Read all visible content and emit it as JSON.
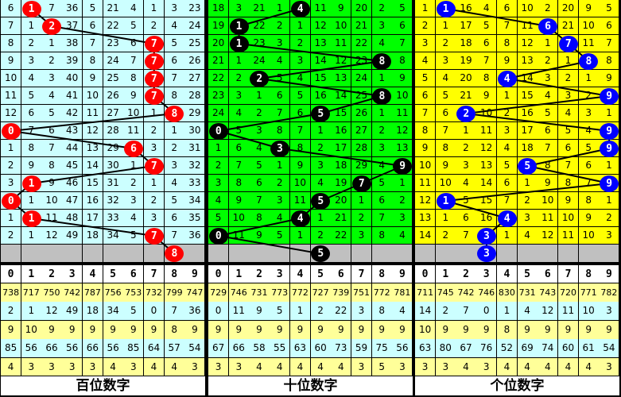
{
  "panels": [
    {
      "title": "百位数字",
      "bg": "#ccffff",
      "ball_color": "#ff0000",
      "rows": [
        [
          6,
          1,
          7,
          36,
          5,
          21,
          4,
          1,
          3,
          23
        ],
        [
          7,
          1,
          2,
          37,
          6,
          22,
          5,
          2,
          4,
          24
        ],
        [
          8,
          2,
          1,
          38,
          7,
          23,
          6,
          7,
          5,
          25
        ],
        [
          9,
          3,
          2,
          39,
          8,
          24,
          7,
          7,
          6,
          26
        ],
        [
          10,
          4,
          3,
          40,
          9,
          25,
          8,
          7,
          7,
          27
        ],
        [
          11,
          5,
          4,
          41,
          10,
          26,
          9,
          7,
          8,
          28
        ],
        [
          12,
          6,
          5,
          42,
          11,
          27,
          10,
          1,
          8,
          29
        ],
        [
          0,
          7,
          6,
          43,
          12,
          28,
          11,
          2,
          1,
          30
        ],
        [
          1,
          8,
          7,
          44,
          13,
          29,
          6,
          3,
          2,
          31
        ],
        [
          2,
          9,
          8,
          45,
          14,
          30,
          1,
          7,
          3,
          32
        ],
        [
          3,
          1,
          9,
          46,
          15,
          31,
          2,
          1,
          4,
          33
        ],
        [
          0,
          1,
          10,
          47,
          16,
          32,
          3,
          2,
          5,
          34
        ],
        [
          1,
          1,
          11,
          48,
          17,
          33,
          4,
          3,
          6,
          35
        ],
        [
          2,
          1,
          12,
          49,
          18,
          34,
          5,
          7,
          7,
          36
        ]
      ],
      "draws": [
        1,
        2,
        7,
        7,
        7,
        7,
        8,
        0,
        6,
        7,
        1,
        0,
        1,
        7
      ],
      "next": 8,
      "stats": [
        [
          738,
          717,
          750,
          742,
          787,
          756,
          753,
          732,
          799,
          747
        ],
        [
          2,
          1,
          12,
          49,
          18,
          34,
          5,
          0,
          7,
          36
        ],
        [
          9,
          10,
          9,
          9,
          9,
          9,
          9,
          9,
          8,
          9
        ],
        [
          85,
          56,
          66,
          56,
          66,
          56,
          85,
          64,
          57,
          54
        ],
        [
          4,
          3,
          3,
          3,
          3,
          4,
          3,
          4,
          4,
          3
        ]
      ]
    },
    {
      "title": "十位数字",
      "bg": "#00ff00",
      "ball_color": "#000000",
      "rows": [
        [
          18,
          3,
          21,
          1,
          4,
          11,
          9,
          20,
          2,
          5
        ],
        [
          19,
          1,
          22,
          2,
          1,
          12,
          10,
          21,
          3,
          6
        ],
        [
          20,
          1,
          23,
          3,
          2,
          13,
          11,
          22,
          4,
          7
        ],
        [
          21,
          1,
          24,
          4,
          3,
          14,
          12,
          23,
          8,
          8
        ],
        [
          22,
          2,
          2,
          5,
          4,
          15,
          13,
          24,
          1,
          9
        ],
        [
          23,
          3,
          1,
          6,
          5,
          16,
          14,
          25,
          8,
          10
        ],
        [
          24,
          4,
          2,
          7,
          6,
          5,
          15,
          26,
          1,
          11
        ],
        [
          0,
          5,
          3,
          8,
          7,
          1,
          16,
          27,
          2,
          12
        ],
        [
          1,
          6,
          4,
          3,
          8,
          2,
          17,
          28,
          3,
          13
        ],
        [
          2,
          7,
          5,
          1,
          9,
          3,
          18,
          29,
          4,
          9
        ],
        [
          3,
          8,
          6,
          2,
          10,
          4,
          19,
          7,
          5,
          1
        ],
        [
          4,
          9,
          7,
          3,
          11,
          5,
          20,
          1,
          6,
          2
        ],
        [
          5,
          10,
          8,
          4,
          4,
          1,
          21,
          2,
          7,
          3
        ],
        [
          0,
          11,
          9,
          5,
          1,
          2,
          22,
          3,
          8,
          4
        ]
      ],
      "draws": [
        4,
        1,
        1,
        8,
        2,
        8,
        5,
        0,
        3,
        9,
        7,
        5,
        4,
        0
      ],
      "next": 5,
      "stats": [
        [
          729,
          746,
          731,
          773,
          772,
          727,
          739,
          751,
          772,
          781
        ],
        [
          0,
          11,
          9,
          5,
          1,
          2,
          22,
          3,
          8,
          4
        ],
        [
          9,
          9,
          9,
          9,
          9,
          9,
          9,
          9,
          9,
          9
        ],
        [
          67,
          66,
          58,
          55,
          63,
          60,
          73,
          59,
          75,
          56
        ],
        [
          3,
          3,
          4,
          4,
          4,
          4,
          4,
          3,
          5,
          3
        ]
      ]
    },
    {
      "title": "个位数字",
      "bg": "#ffff00",
      "ball_color": "#0000ff",
      "rows": [
        [
          1,
          1,
          16,
          4,
          6,
          10,
          2,
          20,
          9,
          5
        ],
        [
          2,
          1,
          17,
          5,
          7,
          11,
          6,
          21,
          10,
          6
        ],
        [
          3,
          2,
          18,
          6,
          8,
          12,
          1,
          7,
          11,
          7
        ],
        [
          4,
          3,
          19,
          7,
          9,
          13,
          2,
          1,
          8,
          8
        ],
        [
          5,
          4,
          20,
          8,
          4,
          14,
          3,
          2,
          1,
          9
        ],
        [
          6,
          5,
          21,
          9,
          1,
          15,
          4,
          3,
          2,
          9
        ],
        [
          7,
          6,
          2,
          10,
          2,
          16,
          5,
          4,
          3,
          1
        ],
        [
          8,
          7,
          1,
          11,
          3,
          17,
          6,
          5,
          4,
          9
        ],
        [
          9,
          8,
          2,
          12,
          4,
          18,
          7,
          6,
          5,
          9
        ],
        [
          10,
          9,
          3,
          13,
          5,
          5,
          8,
          7,
          6,
          1
        ],
        [
          11,
          10,
          4,
          14,
          6,
          1,
          9,
          8,
          7,
          9
        ],
        [
          12,
          1,
          5,
          15,
          7,
          2,
          10,
          9,
          8,
          1
        ],
        [
          13,
          1,
          6,
          16,
          4,
          3,
          11,
          10,
          9,
          2
        ],
        [
          14,
          2,
          7,
          3,
          1,
          4,
          12,
          11,
          10,
          3
        ]
      ],
      "draws": [
        1,
        6,
        7,
        8,
        4,
        9,
        2,
        9,
        9,
        5,
        9,
        1,
        4,
        3
      ],
      "next": 3,
      "stats": [
        [
          711,
          745,
          742,
          746,
          830,
          731,
          743,
          720,
          771,
          782
        ],
        [
          14,
          2,
          7,
          0,
          1,
          4,
          12,
          11,
          10,
          3
        ],
        [
          10,
          9,
          9,
          9,
          8,
          9,
          9,
          9,
          9,
          9
        ],
        [
          63,
          80,
          67,
          76,
          52,
          69,
          74,
          60,
          61,
          54
        ],
        [
          3,
          3,
          4,
          3,
          4,
          4,
          4,
          4,
          4,
          3
        ]
      ]
    }
  ],
  "header_digits": [
    "0",
    "1",
    "2",
    "3",
    "4",
    "5",
    "6",
    "7",
    "8",
    "9"
  ]
}
